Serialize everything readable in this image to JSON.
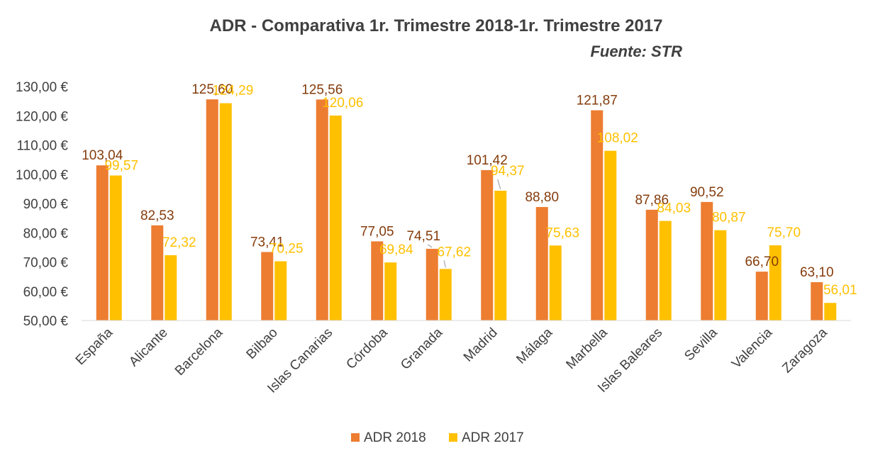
{
  "chart_data": {
    "type": "bar",
    "title": "ADR - Comparativa 1r. Trimestre 2018-1r. Trimestre 2017",
    "subtitle": "Fuente: STR",
    "categories": [
      "España",
      "Alicante",
      "Barcelona",
      "Bilbao",
      "Islas Canarias",
      "Córdoba",
      "Granada",
      "Madrid",
      "Málaga",
      "Marbella",
      "Islas Baleares",
      "Sevilla",
      "Valencia",
      "Zaragoza"
    ],
    "series": [
      {
        "name": "ADR 2018",
        "color": "#ED7D31",
        "label_color": "#843C0C",
        "values": [
          103.04,
          82.53,
          125.6,
          73.41,
          125.56,
          77.05,
          74.51,
          101.42,
          88.8,
          121.87,
          87.86,
          90.52,
          66.7,
          63.1
        ],
        "labels": [
          "103,04",
          "82,53",
          "125,60",
          "73,41",
          "125,56",
          "77,05",
          "74,51",
          "101,42",
          "88,80",
          "121,87",
          "87,86",
          "90,52",
          "66,70",
          "63,10"
        ]
      },
      {
        "name": "ADR 2017",
        "color": "#FFC000",
        "label_color": "#FFC000",
        "values": [
          99.57,
          72.32,
          124.29,
          70.25,
          120.06,
          69.84,
          67.62,
          94.37,
          75.63,
          108.02,
          84.03,
          80.87,
          75.7,
          56.01
        ],
        "labels": [
          "99,57",
          "72,32",
          "124,29",
          "70,25",
          "120,06",
          "69,84",
          "67,62",
          "94,37",
          "75,63",
          "108,02",
          "84,03",
          "80,87",
          "75,70",
          "56,01"
        ]
      }
    ],
    "ylim": [
      50,
      130
    ],
    "yticks": [
      50,
      60,
      70,
      80,
      90,
      100,
      110,
      120,
      130
    ],
    "ytick_labels": [
      "50,00 €",
      "60,00 €",
      "70,00 €",
      "80,00 €",
      "90,00 €",
      "100,00 €",
      "110,00 €",
      "120,00 €",
      "130,00 €"
    ],
    "grid": false,
    "legend_position": "bottom"
  }
}
